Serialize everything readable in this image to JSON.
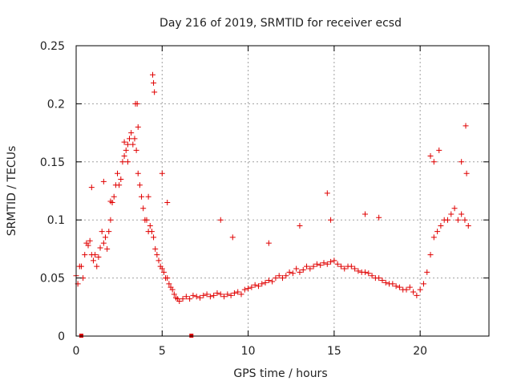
{
  "chart_data": {
    "type": "scatter",
    "title": "Day 216 of 2019, SRMTID for receiver ecsd",
    "xlabel": "GPS time / hours",
    "ylabel": "SRMTID / TECUs",
    "xlim": [
      0,
      24
    ],
    "ylim": [
      0,
      0.25
    ],
    "xticks": [
      0,
      5,
      10,
      15,
      20
    ],
    "xtick_labels": [
      "0",
      "5",
      "10",
      "15",
      "20"
    ],
    "yticks": [
      0,
      0.05,
      0.1,
      0.15,
      0.2,
      0.25
    ],
    "ytick_labels": [
      "0",
      "0.05",
      "0.1",
      "0.15",
      "0.2",
      "0.25"
    ],
    "grid": true,
    "marker": "plus",
    "color": "#e00000",
    "series": [
      {
        "name": "SRMTID",
        "x": [
          0.0,
          0.1,
          0.2,
          0.3,
          0.4,
          0.5,
          0.6,
          0.7,
          0.8,
          0.9,
          1.0,
          1.1,
          1.2,
          1.3,
          1.4,
          1.5,
          1.6,
          1.7,
          1.8,
          1.9,
          2.0,
          2.1,
          2.2,
          2.3,
          2.4,
          2.5,
          2.6,
          2.7,
          2.8,
          2.9,
          3.0,
          3.1,
          3.2,
          3.3,
          3.4,
          3.5,
          3.6,
          3.7,
          3.8,
          3.9,
          4.0,
          4.1,
          4.2,
          4.3,
          4.4,
          4.5,
          4.6,
          4.7,
          4.8,
          4.9,
          5.0,
          5.1,
          5.2,
          5.3,
          5.4,
          5.5,
          5.6,
          5.7,
          5.8,
          5.9,
          6.0,
          6.2,
          6.4,
          6.6,
          6.8,
          7.0,
          7.2,
          7.4,
          7.6,
          7.8,
          8.0,
          8.2,
          8.4,
          8.6,
          8.8,
          9.0,
          9.2,
          9.4,
          9.6,
          9.8,
          10.0,
          10.2,
          10.4,
          10.6,
          10.8,
          11.0,
          11.2,
          11.4,
          11.6,
          11.8,
          12.0,
          12.2,
          12.4,
          12.6,
          12.8,
          13.0,
          13.2,
          13.4,
          13.6,
          13.8,
          14.0,
          14.2,
          14.4,
          14.6,
          14.8,
          15.0,
          15.2,
          15.4,
          15.6,
          15.8,
          16.0,
          16.2,
          16.4,
          16.6,
          16.8,
          17.0,
          17.2,
          17.4,
          17.6,
          17.8,
          18.0,
          18.2,
          18.4,
          18.6,
          18.8,
          19.0,
          19.2,
          19.4,
          19.6,
          19.8,
          20.0,
          20.2,
          20.4,
          20.6,
          20.8,
          21.0,
          21.2,
          21.4,
          21.6,
          21.8,
          22.0,
          22.2,
          22.4,
          22.6,
          22.8,
          3.45,
          3.55,
          4.45,
          4.5,
          4.55,
          22.65,
          0.9,
          1.6,
          2.0,
          2.8,
          3.0,
          3.6,
          4.2,
          5.0,
          5.3,
          8.4,
          9.1,
          11.2,
          13.0,
          14.6,
          14.8,
          16.8,
          17.6,
          20.6,
          20.8,
          21.1,
          22.4,
          22.7
        ],
        "y": [
          0.052,
          0.045,
          0.06,
          0.06,
          0.05,
          0.07,
          0.08,
          0.078,
          0.082,
          0.07,
          0.065,
          0.07,
          0.06,
          0.068,
          0.076,
          0.09,
          0.08,
          0.085,
          0.075,
          0.09,
          0.1,
          0.115,
          0.12,
          0.13,
          0.14,
          0.13,
          0.135,
          0.15,
          0.155,
          0.16,
          0.165,
          0.17,
          0.175,
          0.165,
          0.17,
          0.16,
          0.14,
          0.13,
          0.12,
          0.11,
          0.1,
          0.1,
          0.09,
          0.095,
          0.09,
          0.085,
          0.075,
          0.07,
          0.065,
          0.06,
          0.058,
          0.055,
          0.05,
          0.05,
          0.045,
          0.042,
          0.04,
          0.036,
          0.033,
          0.032,
          0.03,
          0.032,
          0.034,
          0.032,
          0.035,
          0.034,
          0.033,
          0.035,
          0.036,
          0.034,
          0.035,
          0.037,
          0.036,
          0.034,
          0.036,
          0.035,
          0.037,
          0.038,
          0.036,
          0.04,
          0.041,
          0.042,
          0.044,
          0.043,
          0.045,
          0.046,
          0.048,
          0.047,
          0.05,
          0.052,
          0.05,
          0.052,
          0.055,
          0.054,
          0.058,
          0.055,
          0.057,
          0.06,
          0.058,
          0.06,
          0.062,
          0.061,
          0.063,
          0.062,
          0.064,
          0.065,
          0.062,
          0.06,
          0.058,
          0.06,
          0.06,
          0.058,
          0.056,
          0.055,
          0.055,
          0.054,
          0.052,
          0.05,
          0.05,
          0.048,
          0.046,
          0.045,
          0.045,
          0.043,
          0.042,
          0.04,
          0.04,
          0.042,
          0.038,
          0.035,
          0.04,
          0.045,
          0.055,
          0.07,
          0.085,
          0.09,
          0.095,
          0.1,
          0.1,
          0.105,
          0.11,
          0.1,
          0.105,
          0.1,
          0.095,
          0.2,
          0.2,
          0.225,
          0.218,
          0.21,
          0.181,
          0.128,
          0.133,
          0.116,
          0.167,
          0.15,
          0.18,
          0.12,
          0.14,
          0.115,
          0.1,
          0.085,
          0.08,
          0.095,
          0.123,
          0.1,
          0.105,
          0.102,
          0.155,
          0.15,
          0.16,
          0.15,
          0.14
        ],
        "outliers": [
          {
            "x": 0.3,
            "y": 0.0
          },
          {
            "x": 6.7,
            "y": 0.0
          }
        ]
      }
    ]
  }
}
